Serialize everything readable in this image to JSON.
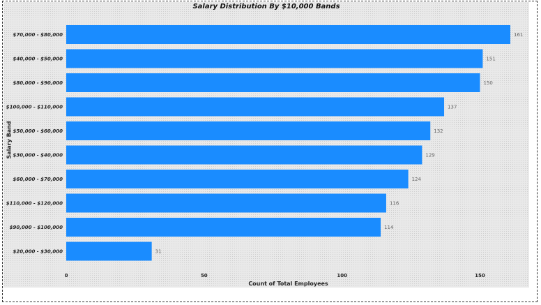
{
  "chart_data": {
    "type": "bar",
    "orientation": "horizontal",
    "title": "Salary Distribution By $10,000 Bands",
    "xlabel": "Count of Total Employees",
    "ylabel": "Salary Band",
    "categories": [
      "$70,000 - $80,000",
      "$40,000 - $50,000",
      "$80,000 - $90,000",
      "$100,000 - $110,000",
      "$50,000 - $60,000",
      "$30,000 - $40,000",
      "$60,000 - $70,000",
      "$110,000 - $120,000",
      "$90,000 - $100,000",
      "$20,000 - $30,000"
    ],
    "values": [
      161,
      151,
      150,
      137,
      132,
      129,
      124,
      116,
      114,
      31
    ],
    "xlim": [
      0,
      161
    ],
    "xticks": [
      0,
      50,
      100,
      150
    ],
    "bar_color": "#1a8cff",
    "data_labels": true,
    "grid": false
  }
}
